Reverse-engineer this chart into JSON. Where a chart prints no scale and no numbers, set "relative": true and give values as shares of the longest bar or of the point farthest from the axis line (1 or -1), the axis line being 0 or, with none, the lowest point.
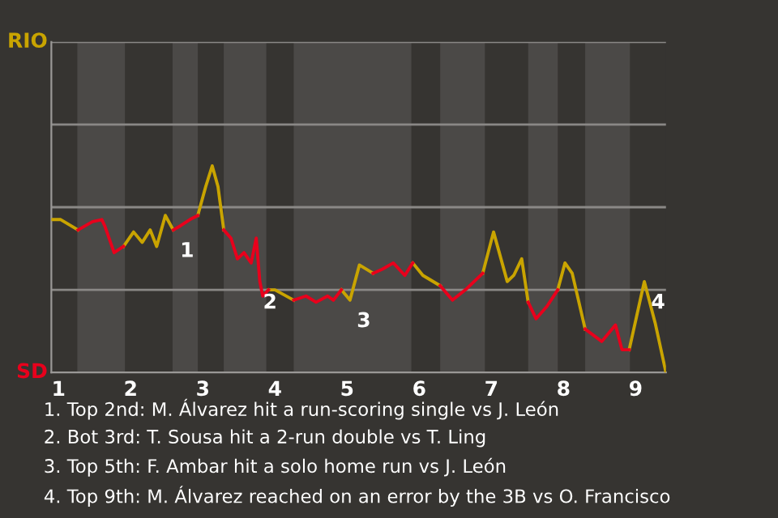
{
  "chart_data": {
    "type": "line",
    "relative": true,
    "x": [
      0.9,
      1.03,
      1.27,
      1.47,
      1.6,
      1.64,
      1.77,
      1.9,
      2.04,
      2.16,
      2.27,
      2.36,
      2.48,
      2.59,
      2.69,
      2.82,
      2.93,
      3.04,
      3.13,
      3.21,
      3.29,
      3.39,
      3.48,
      3.57,
      3.67,
      3.74,
      3.79,
      3.83,
      3.91,
      4,
      4.26,
      4.43,
      4.57,
      4.73,
      4.81,
      4.92,
      5.04,
      5.17,
      5.36,
      5.49,
      5.64,
      5.8,
      5.91,
      6.05,
      6.29,
      6.46,
      6.64,
      6.88,
      7.03,
      7.22,
      7.31,
      7.42,
      7.51,
      7.62,
      7.77,
      7.92,
      8.02,
      8.12,
      8.3,
      8.53,
      8.72,
      8.81,
      8.91,
      9.12,
      9.27,
      9.42
    ],
    "series": [
      {
        "color": "#c9a400",
        "values": [
          0.74,
          0.74,
          0.69,
          null,
          null,
          null,
          null,
          0.61,
          0.68,
          0.63,
          0.69,
          0.61,
          0.76,
          0.69,
          null,
          null,
          0.76,
          0.9,
          1,
          0.9,
          0.69,
          null,
          null,
          null,
          null,
          null,
          null,
          null,
          0.4,
          0.4,
          0.35,
          null,
          null,
          null,
          null,
          0.4,
          0.35,
          0.52,
          0.48,
          null,
          null,
          null,
          0.53,
          0.47,
          0.42,
          null,
          null,
          0.48,
          0.68,
          0.44,
          0.47,
          0.55,
          0.34,
          null,
          null,
          0.4,
          0.53,
          0.48,
          0.21,
          null,
          null,
          null,
          0.11,
          0.44,
          0.24,
          0
        ]
      },
      {
        "color": "#e8001c",
        "values": [
          null,
          null,
          0.69,
          0.73,
          0.74,
          0.71,
          0.58,
          0.61,
          null,
          null,
          null,
          null,
          null,
          0.69,
          0.71,
          0.74,
          0.76,
          null,
          null,
          null,
          0.69,
          0.65,
          0.55,
          0.58,
          0.53,
          0.65,
          0.44,
          0.37,
          0.4,
          null,
          0.35,
          0.37,
          0.34,
          0.37,
          0.35,
          0.4,
          null,
          null,
          0.48,
          0.5,
          0.53,
          0.47,
          0.53,
          null,
          0.42,
          0.35,
          0.4,
          0.48,
          null,
          null,
          null,
          null,
          0.34,
          0.26,
          0.32,
          0.4,
          null,
          null,
          0.21,
          0.15,
          0.23,
          0.11,
          0.11,
          null,
          null,
          null
        ]
      }
    ],
    "xlim": [
      0.9,
      9.42
    ],
    "xticks": [
      1,
      2,
      3,
      4,
      5,
      6,
      7,
      8,
      9
    ],
    "ref_lines": [
      {
        "axis": "y",
        "value": 0.4,
        "color": "#8a8886"
      },
      {
        "axis": "y",
        "value": 0.8,
        "color": "#8a8886"
      },
      {
        "axis": "y",
        "value": 1.2,
        "color": "#8a8886"
      },
      {
        "axis": "y",
        "value": 1.6,
        "color": "#8a8886"
      }
    ],
    "line_style": "solid",
    "marker": "none",
    "bands": [
      {
        "axis": "x",
        "from": 1.26,
        "to": 1.92,
        "color": "#4b4947"
      },
      {
        "axis": "x",
        "from": 2.58,
        "to": 2.93,
        "color": "#4b4947"
      },
      {
        "axis": "x",
        "from": 3.29,
        "to": 3.88,
        "color": "#4b4947"
      },
      {
        "axis": "x",
        "from": 4.26,
        "to": 5.89,
        "color": "#4b4947"
      },
      {
        "axis": "x",
        "from": 6.29,
        "to": 6.91,
        "color": "#4b4947"
      },
      {
        "axis": "x",
        "from": 7.51,
        "to": 7.92,
        "color": "#4b4947"
      },
      {
        "axis": "x",
        "from": 8.3,
        "to": 8.92,
        "color": "#4b4947"
      }
    ],
    "annotations": [
      "RIO",
      "SD",
      {
        "text": "1",
        "x": 2.59,
        "y": 0.69
      },
      {
        "text": "2",
        "x": 3.74,
        "y": 0.44
      },
      {
        "text": "3",
        "x": 5.04,
        "y": 0.35
      },
      {
        "text": "4",
        "x": 9.12,
        "y": 0.44
      },
      "1. Top 2nd: M. Álvarez hit a run-scoring single vs J. León",
      "2. Bot 3rd: T. Sousa hit a 2-run double vs T. Ling",
      "3. Top 5th: F. Ambar hit a solo home run vs J. León",
      "4. Top 9th: M. Álvarez reached on an error by the 3B vs O. Francisco"
    ]
  }
}
